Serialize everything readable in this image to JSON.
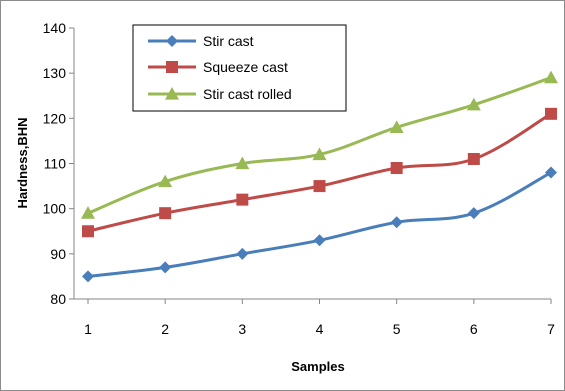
{
  "chart_data": {
    "type": "line",
    "title": "",
    "xlabel": "Samples",
    "ylabel": "Hardness,BHN",
    "x": [
      1,
      2,
      3,
      4,
      5,
      6,
      7
    ],
    "xlim": [
      1,
      7
    ],
    "ylim": [
      80,
      140
    ],
    "yticks": [
      80,
      90,
      100,
      110,
      120,
      130,
      140
    ],
    "grid": false,
    "legend_position": "top-left",
    "series": [
      {
        "name": "Stir cast",
        "marker": "diamond",
        "color": "#4a7ebb",
        "values": [
          85,
          87,
          90,
          93,
          97,
          99,
          108
        ]
      },
      {
        "name": "Squeeze cast",
        "marker": "square",
        "color": "#be4b48",
        "values": [
          95,
          99,
          102,
          105,
          109,
          111,
          121
        ]
      },
      {
        "name": "Stir cast rolled",
        "marker": "triangle",
        "color": "#98b954",
        "values": [
          99,
          106,
          110,
          112,
          118,
          123,
          129
        ]
      }
    ]
  }
}
